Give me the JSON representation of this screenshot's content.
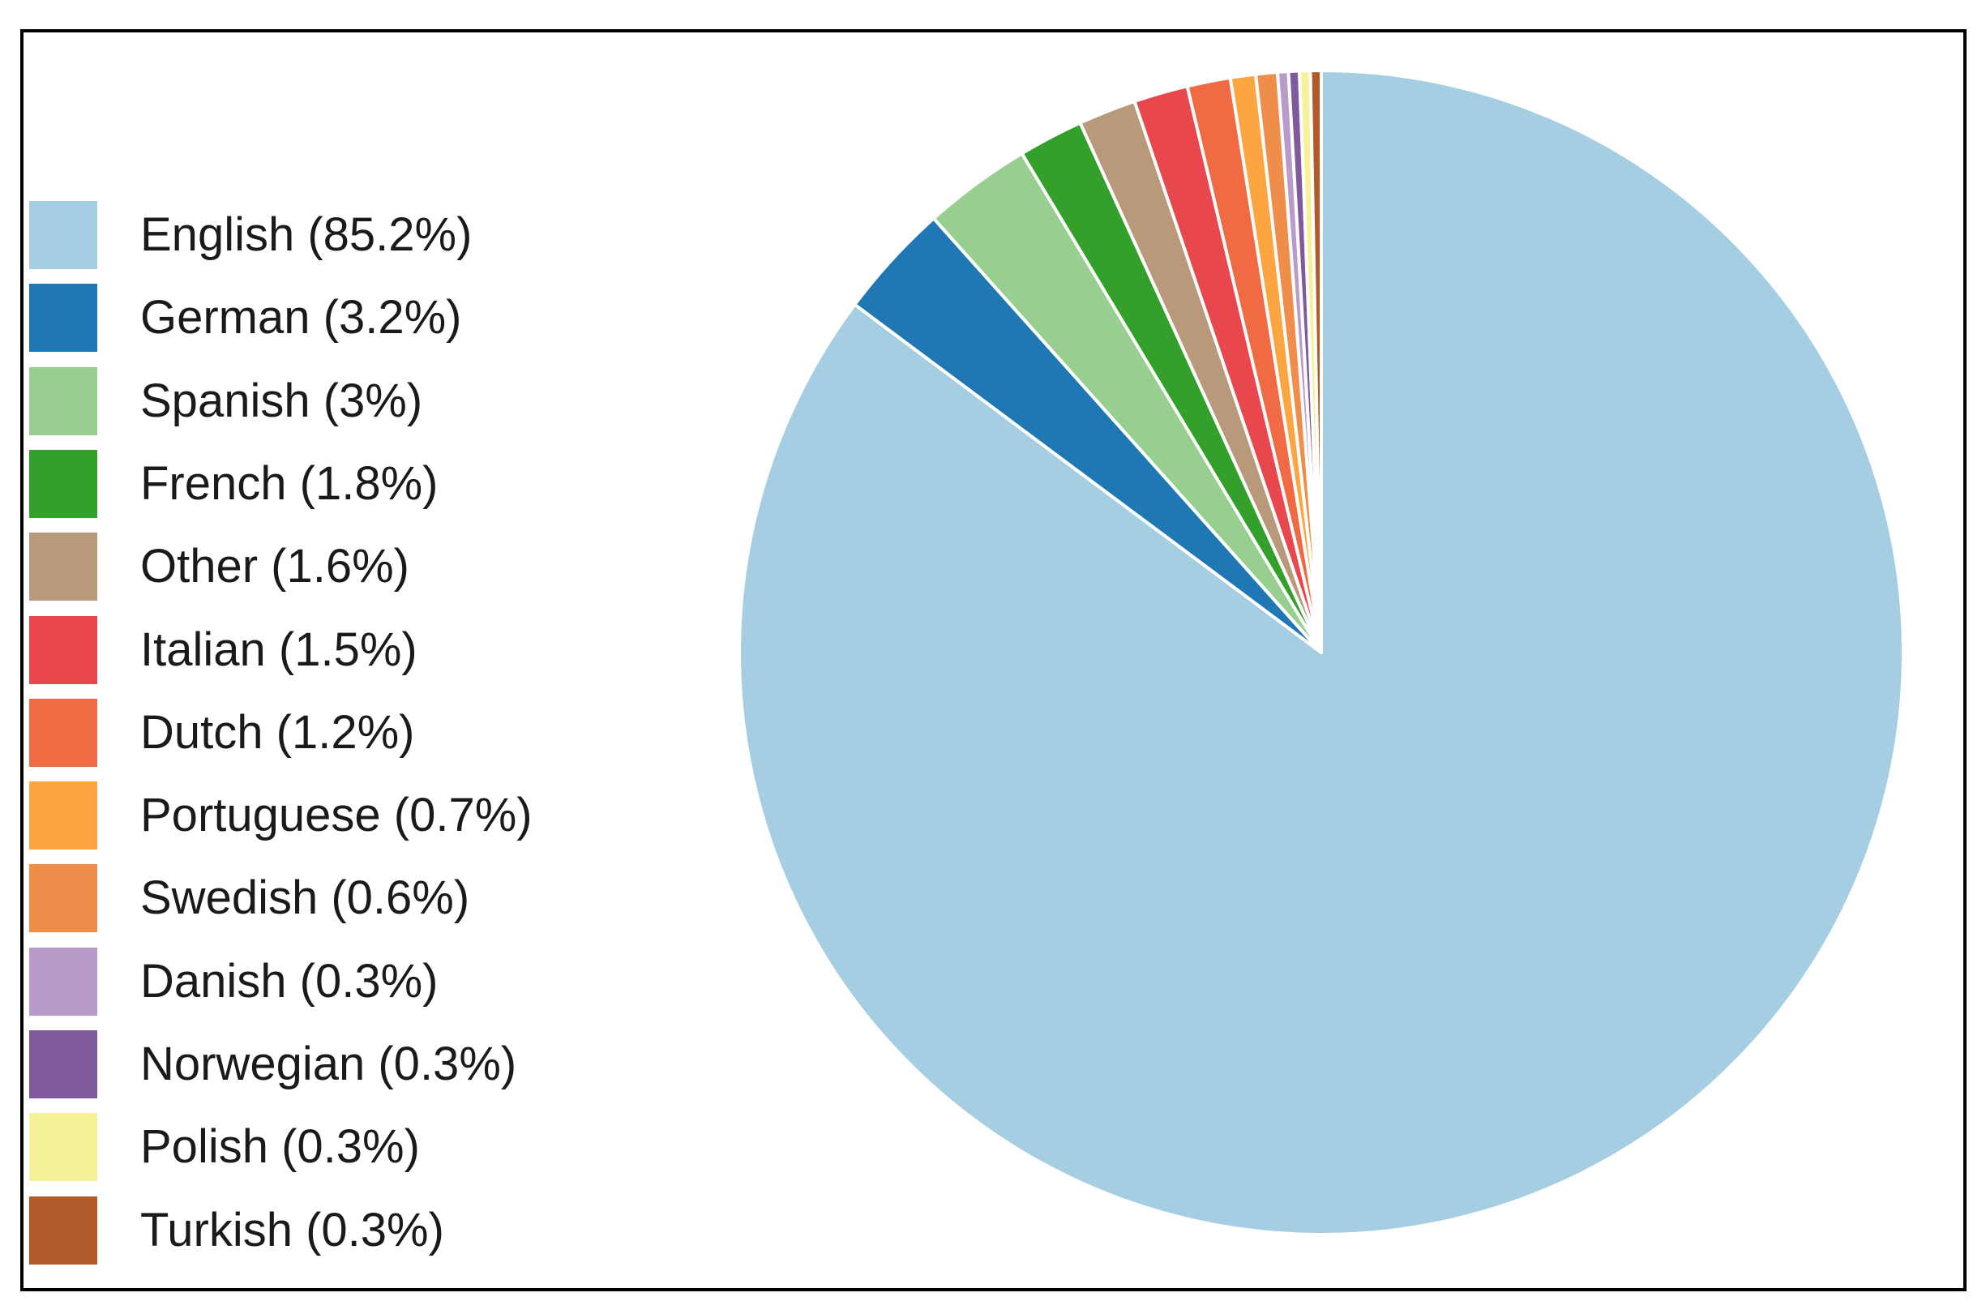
{
  "chart_data": {
    "type": "pie",
    "title": "",
    "start_angle": "12 o'clock",
    "direction": "clockwise",
    "legend_position": "left",
    "slice_separator_color": "#ffffff",
    "slices": [
      {
        "label": "English (85.2%)",
        "name": "English",
        "value": 85.2,
        "color": "#a6cee3"
      },
      {
        "label": "German (3.2%)",
        "name": "German",
        "value": 3.2,
        "color": "#1f78b4"
      },
      {
        "label": "Spanish (3%)",
        "name": "Spanish",
        "value": 3.0,
        "color": "#98cf90"
      },
      {
        "label": "French (1.8%)",
        "name": "French",
        "value": 1.8,
        "color": "#33a02c"
      },
      {
        "label": "Other (1.6%)",
        "name": "Other",
        "value": 1.6,
        "color": "#b89a7a"
      },
      {
        "label": "Italian (1.5%)",
        "name": "Italian",
        "value": 1.5,
        "color": "#e8474d"
      },
      {
        "label": "Dutch (1.2%)",
        "name": "Dutch",
        "value": 1.2,
        "color": "#f06b43"
      },
      {
        "label": "Portuguese (0.7%)",
        "name": "Portuguese",
        "value": 0.7,
        "color": "#fda641"
      },
      {
        "label": "Swedish (0.6%)",
        "name": "Swedish",
        "value": 0.6,
        "color": "#ef8d4a"
      },
      {
        "label": "Danish (0.3%)",
        "name": "Danish",
        "value": 0.3,
        "color": "#b89bca"
      },
      {
        "label": "Norwegian (0.3%)",
        "name": "Norwegian",
        "value": 0.3,
        "color": "#7f5a9e"
      },
      {
        "label": "Polish (0.3%)",
        "name": "Polish",
        "value": 0.3,
        "color": "#f7f299"
      },
      {
        "label": "Turkish (0.3%)",
        "name": "Turkish",
        "value": 0.3,
        "color": "#b15928"
      }
    ]
  }
}
